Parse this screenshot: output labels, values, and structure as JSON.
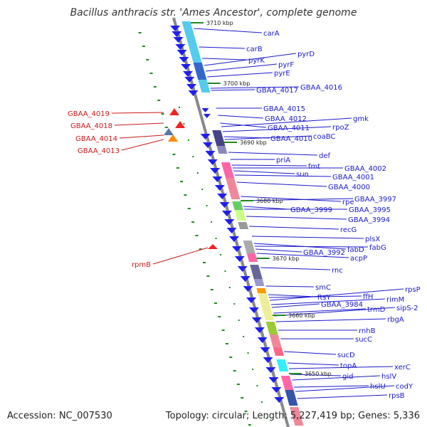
{
  "title": "Bacillus anthracis str. 'Ames Ancestor', complete genome",
  "footer": {
    "accession": "Accession: NC_007530",
    "summary": "Topology: circular; Length: 5,227,419 bp; Genes: 5,336"
  },
  "colors": {
    "forward_label": "#1a1acc",
    "reverse_label": "#cc1a1a",
    "backbone": "#888888",
    "ticks": "#228822"
  },
  "scale_ticks": [
    "3710 kbp",
    "3700 kbp",
    "3690 kbp",
    "3680 kbp",
    "3670 kbp",
    "3660 kbp",
    "3650 kbp"
  ],
  "forward_genes": [
    "carA",
    "carB",
    "pyrK",
    "pyrD",
    "pyrF",
    "pyrE",
    "GBAA_4017",
    "GBAA_4016",
    "GBAA_4015",
    "GBAA_4012",
    "GBAA_4011",
    "gmk",
    "rpoZ",
    "GBAA_4010",
    "coaBC",
    "def",
    "priA",
    "fmt",
    "sun",
    "GBAA_4002",
    "GBAA_4001",
    "GBAA_4000",
    "rpe",
    "GBAA_3997",
    "GBAA_3999",
    "GBAA_3995",
    "GBAA_3994",
    "recG",
    "plsX",
    "fabD",
    "fabG",
    "GBAA_3992",
    "acpP",
    "rnc",
    "smC",
    "ftsY",
    "ffH",
    "rpsP",
    "rimM",
    "GBAA_3984",
    "trmD",
    "sipS-2",
    "rbgA",
    "rnhB",
    "sucC",
    "sucD",
    "topA",
    "xerC",
    "gid",
    "hslV",
    "hslU",
    "codY",
    "rpsB"
  ],
  "reverse_genes": [
    "GBAA_4019",
    "GBAA_4018",
    "GBAA_4014",
    "GBAA_4013",
    "rpmB"
  ]
}
